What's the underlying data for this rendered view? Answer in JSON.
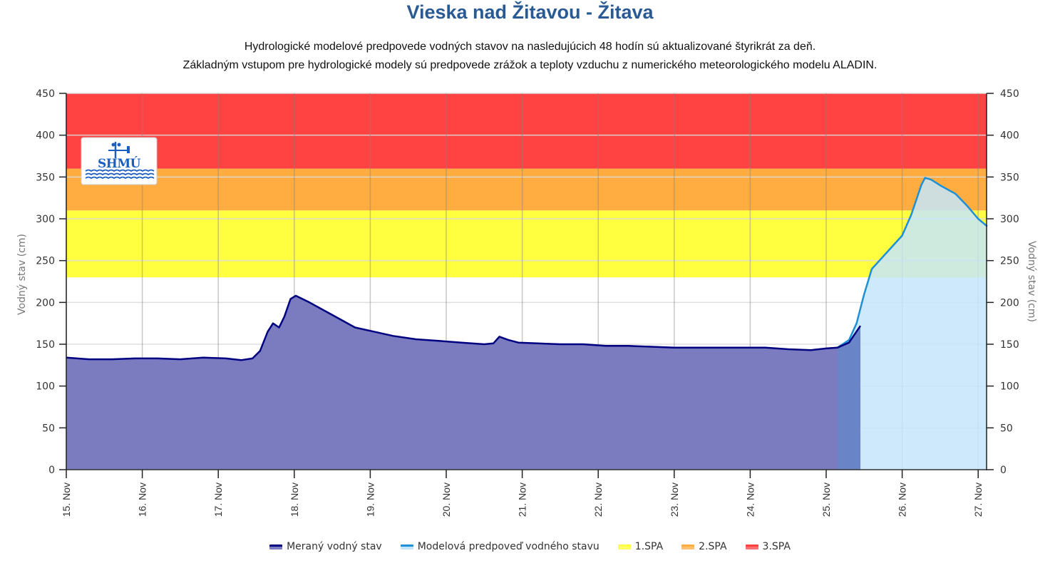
{
  "header": {
    "title": "Vieska nad Žitavou - Žitava",
    "subtitle_line1": "Hydrologické modelové predpovede vodných stavov na nasledujúcich 48 hodín sú aktualizované štyrikrát za deň.",
    "subtitle_line2": "Základným vstupom pre hydrologické modely sú predpovede zrážok a teploty vzduchu z numerického meteorologického modelu ALADIN."
  },
  "logo": {
    "text": "SHMÚ",
    "icon": "weather-vane-waves-logo"
  },
  "legend": [
    {
      "label": "Meraný vodný stav",
      "color": "#000080",
      "fill": "#7b7cc0"
    },
    {
      "label": "Modelová predpoveď vodného stavu",
      "color": "#1e90d8",
      "fill": "#c4e4fb"
    },
    {
      "label": "1.SPA",
      "color": "#ffff44",
      "fill": "#ffff66"
    },
    {
      "label": "2.SPA",
      "color": "#ffad40",
      "fill": "#ffc070"
    },
    {
      "label": "3.SPA",
      "color": "#ff4040",
      "fill": "#ff7070"
    }
  ],
  "colors": {
    "title": "#2a5a93",
    "measured_line": "#000080",
    "measured_fill": "#7b7cc0",
    "measured_fill_overlap": "#6a84c8",
    "forecast_line": "#1e90d8",
    "forecast_fill": "#c6e5fa",
    "spa1": "#ffff3f",
    "spa2": "#ffad40",
    "spa3": "#ff4343"
  },
  "chart_data": {
    "type": "area",
    "title": "Vieska nad Žitavou - Žitava",
    "xlabel": "",
    "ylabel": "Vodný stav (cm)",
    "ylabel_right": "Vodný stav (cm)",
    "ylim": [
      0,
      450
    ],
    "yticks": [
      0,
      50,
      100,
      150,
      200,
      250,
      300,
      350,
      400,
      450
    ],
    "xlim": [
      15.0,
      27.12
    ],
    "x_unit": "day of November",
    "x_tick_labels": [
      "15. Nov",
      "16. Nov",
      "17. Nov",
      "18. Nov",
      "19. Nov",
      "20. Nov",
      "21. Nov",
      "22. Nov",
      "23. Nov",
      "24. Nov",
      "25. Nov",
      "26. Nov",
      "27. Nov"
    ],
    "grid": true,
    "legend_position": "bottom",
    "thresholds": [
      {
        "name": "1.SPA",
        "from": 230,
        "to": 310,
        "color": "#ffff3f"
      },
      {
        "name": "2.SPA",
        "from": 310,
        "to": 360,
        "color": "#ffad40"
      },
      {
        "name": "3.SPA",
        "from": 360,
        "to": 450,
        "color": "#ff4343"
      }
    ],
    "series": [
      {
        "name": "Meraný vodný stav",
        "x": [
          15.0,
          15.3,
          15.6,
          15.9,
          16.2,
          16.5,
          16.8,
          17.1,
          17.3,
          17.45,
          17.55,
          17.65,
          17.72,
          17.8,
          17.87,
          17.95,
          18.02,
          18.2,
          18.5,
          18.8,
          19.0,
          19.3,
          19.6,
          19.9,
          20.2,
          20.5,
          20.62,
          20.7,
          20.82,
          20.95,
          21.2,
          21.5,
          21.8,
          22.1,
          22.4,
          22.7,
          23.0,
          23.3,
          23.6,
          23.9,
          24.2,
          24.5,
          24.8,
          25.0,
          25.15,
          25.3,
          25.45
        ],
        "values": [
          134,
          132,
          132,
          133,
          133,
          132,
          134,
          133,
          131,
          133,
          142,
          165,
          175,
          170,
          183,
          204,
          208,
          200,
          185,
          170,
          166,
          160,
          156,
          154,
          152,
          150,
          151,
          159,
          155,
          152,
          151,
          150,
          150,
          148,
          148,
          147,
          146,
          146,
          146,
          146,
          146,
          144,
          143,
          145,
          146,
          152,
          172
        ]
      },
      {
        "name": "Modelová predpoveď vodného stavu",
        "x": [
          25.15,
          25.3,
          25.4,
          25.5,
          25.6,
          25.72,
          25.82,
          26.0,
          26.12,
          26.25,
          26.3,
          26.38,
          26.5,
          26.7,
          26.85,
          27.0,
          27.12
        ],
        "values": [
          146,
          155,
          175,
          210,
          240,
          252,
          262,
          280,
          305,
          340,
          349,
          347,
          340,
          330,
          316,
          300,
          291
        ]
      }
    ],
    "logo_text": "SHMÚ"
  }
}
